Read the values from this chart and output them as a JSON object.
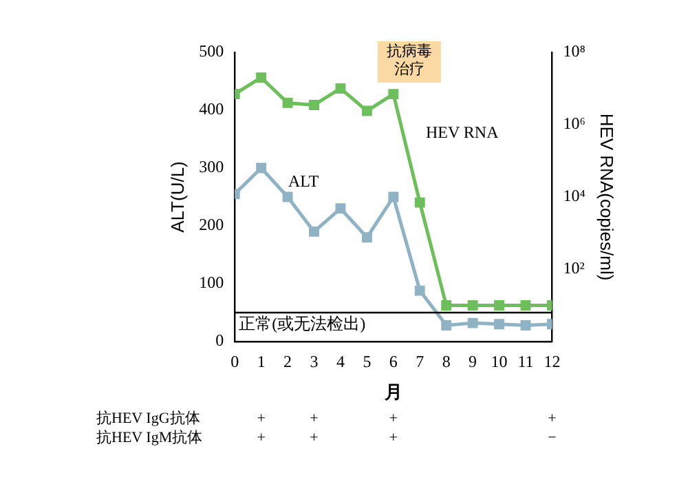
{
  "chart_data": {
    "type": "line",
    "x": [
      0,
      1,
      2,
      3,
      4,
      5,
      6,
      7,
      8,
      9,
      10,
      11,
      12
    ],
    "series": [
      {
        "name": "HEV RNA",
        "color": "#6cbf5a",
        "axis": "y2",
        "values": [
          7000000,
          20000000,
          4000000,
          3500000,
          10000000,
          2400000,
          7000000,
          7000,
          10,
          10,
          10,
          10,
          10
        ]
      },
      {
        "name": "ALT",
        "color": "#8fb3c4",
        "values": [
          255,
          300,
          250,
          190,
          230,
          180,
          250,
          88,
          28,
          32,
          30,
          28,
          30
        ]
      }
    ],
    "xlabel": "月",
    "ylabel": "ALT(U/L)",
    "y2label": "HEV RNA(copies/ml)",
    "xlim": [
      0,
      12
    ],
    "xticks": [
      0,
      1,
      2,
      3,
      4,
      5,
      6,
      7,
      8,
      9,
      10,
      11,
      12
    ],
    "ylim": [
      0,
      500
    ],
    "yticks": [
      0,
      100,
      200,
      300,
      400,
      500
    ],
    "y2lim": [
      1,
      100000000
    ],
    "y2ticks": [
      {
        "value": 100,
        "label": "10²"
      },
      {
        "value": 10000,
        "label": "10⁴"
      },
      {
        "value": 1000000,
        "label": "10⁶"
      },
      {
        "value": 100000000,
        "label": "10⁸"
      }
    ],
    "log": "y2",
    "grid": false,
    "legend": false,
    "marker": "square",
    "line_style": "solid",
    "ref_lines": [
      {
        "axis": "y",
        "value": 50,
        "label": "正常(或无法检出)",
        "color": "#000000"
      }
    ],
    "annotations": [
      "抗病毒治疗",
      "抗HEV IgG抗体",
      "+",
      "+",
      "+",
      "+",
      "抗HEV IgM抗体",
      "+",
      "+",
      "+",
      "−"
    ]
  }
}
